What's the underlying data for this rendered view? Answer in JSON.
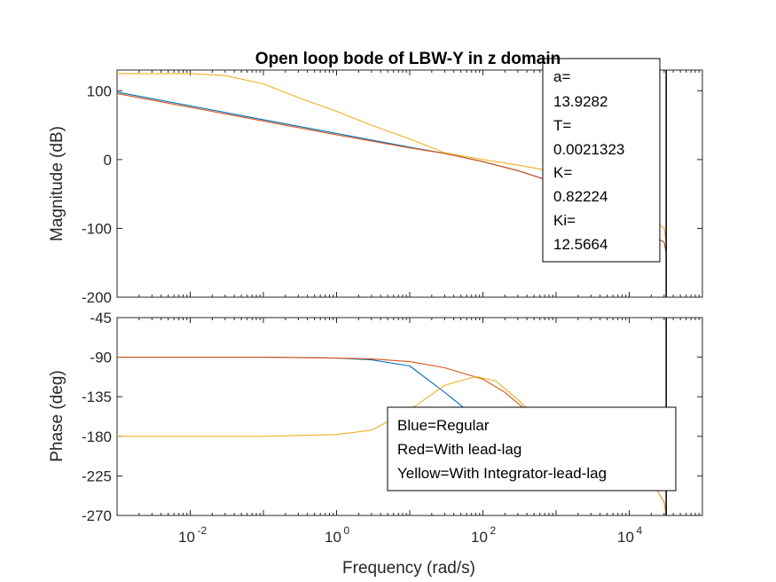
{
  "chart_data": [
    {
      "type": "line",
      "title": "Open loop bode of LBW-Y in z domain",
      "ylabel": "Magnitude (dB)",
      "xscale": "log",
      "xlim": [
        0.001,
        100000
      ],
      "ylim": [
        -200,
        130
      ],
      "yticks": [
        100,
        0,
        -100,
        -200
      ],
      "grid": false,
      "nyquist_line_x": 1473,
      "series": [
        {
          "color": "#0072BD",
          "x": [
            0.001,
            0.01,
            0.1,
            1,
            10,
            30,
            100,
            300,
            1000,
            3000,
            10000,
            20000,
            30000,
            1473
          ],
          "y": [
            98,
            78,
            58,
            38,
            18,
            9,
            -3,
            -16,
            -34,
            -54,
            -86,
            -110,
            -120,
            -135
          ]
        },
        {
          "color": "#D95319",
          "x": [
            0.001,
            0.01,
            0.1,
            1,
            10,
            30,
            100,
            300,
            1000,
            3000,
            10000,
            20000,
            30000,
            1473
          ],
          "y": [
            96,
            76,
            56,
            36,
            17,
            9,
            -3,
            -16,
            -34,
            -54,
            -86,
            -110,
            -120,
            -135
          ]
        },
        {
          "color": "#EDB120",
          "x": [
            0.001,
            0.01,
            0.03,
            0.1,
            0.3,
            1,
            3,
            10,
            30,
            100,
            300,
            1000,
            3000,
            10000,
            20000,
            30000,
            1473
          ],
          "y": [
            125,
            125,
            122,
            110,
            90,
            70,
            50,
            30,
            10,
            0,
            -8,
            -18,
            -35,
            -65,
            -85,
            -100,
            -120
          ]
        }
      ],
      "annotation": [
        "a=",
        "13.9282",
        "T=",
        "0.0021323",
        "K=",
        "0.82224",
        "Ki=",
        "12.5664"
      ]
    },
    {
      "type": "line",
      "xlabel": "Frequency  (rad/s)",
      "ylabel": "Phase (deg)",
      "xscale": "log",
      "xlim": [
        0.001,
        100000
      ],
      "ylim": [
        -270,
        -45
      ],
      "yticks": [
        -45,
        -90,
        -135,
        -180,
        -225,
        -270
      ],
      "xticks": [
        0.01,
        1,
        100,
        10000
      ],
      "xtick_labels": [
        [
          "10",
          "-2"
        ],
        [
          "10",
          "0"
        ],
        [
          "10",
          "2"
        ],
        [
          "10",
          "4"
        ]
      ],
      "grid": false,
      "nyquist_line_x": 1473,
      "series": [
        {
          "color": "#0072BD",
          "x": [
            0.001,
            0.1,
            1,
            3,
            10,
            30,
            100,
            300,
            1000,
            3000,
            10000,
            20000,
            30000,
            1473
          ],
          "y": [
            -90,
            -90,
            -91,
            -93,
            -100,
            -130,
            -165,
            -180,
            -186,
            -190,
            -205,
            -230,
            -255,
            -270
          ]
        },
        {
          "color": "#D95319",
          "x": [
            0.001,
            0.1,
            1,
            3,
            10,
            30,
            100,
            200,
            500,
            1000,
            3000,
            10000,
            20000,
            30000,
            1473
          ],
          "y": [
            -90,
            -90,
            -91,
            -92,
            -95,
            -102,
            -115,
            -130,
            -158,
            -172,
            -190,
            -205,
            -230,
            -255,
            -270
          ]
        },
        {
          "color": "#EDB120",
          "x": [
            0.001,
            0.1,
            1,
            3,
            10,
            30,
            80,
            150,
            300,
            600,
            1000,
            3000,
            10000,
            20000,
            30000,
            1473
          ],
          "y": [
            -180,
            -180,
            -178,
            -173,
            -150,
            -122,
            -112,
            -117,
            -138,
            -163,
            -172,
            -188,
            -205,
            -230,
            -255,
            -270
          ]
        }
      ],
      "legend": [
        "Blue=Regular",
        "Red=With lead-lag",
        "Yellow=With Integrator-lead-lag"
      ]
    }
  ]
}
